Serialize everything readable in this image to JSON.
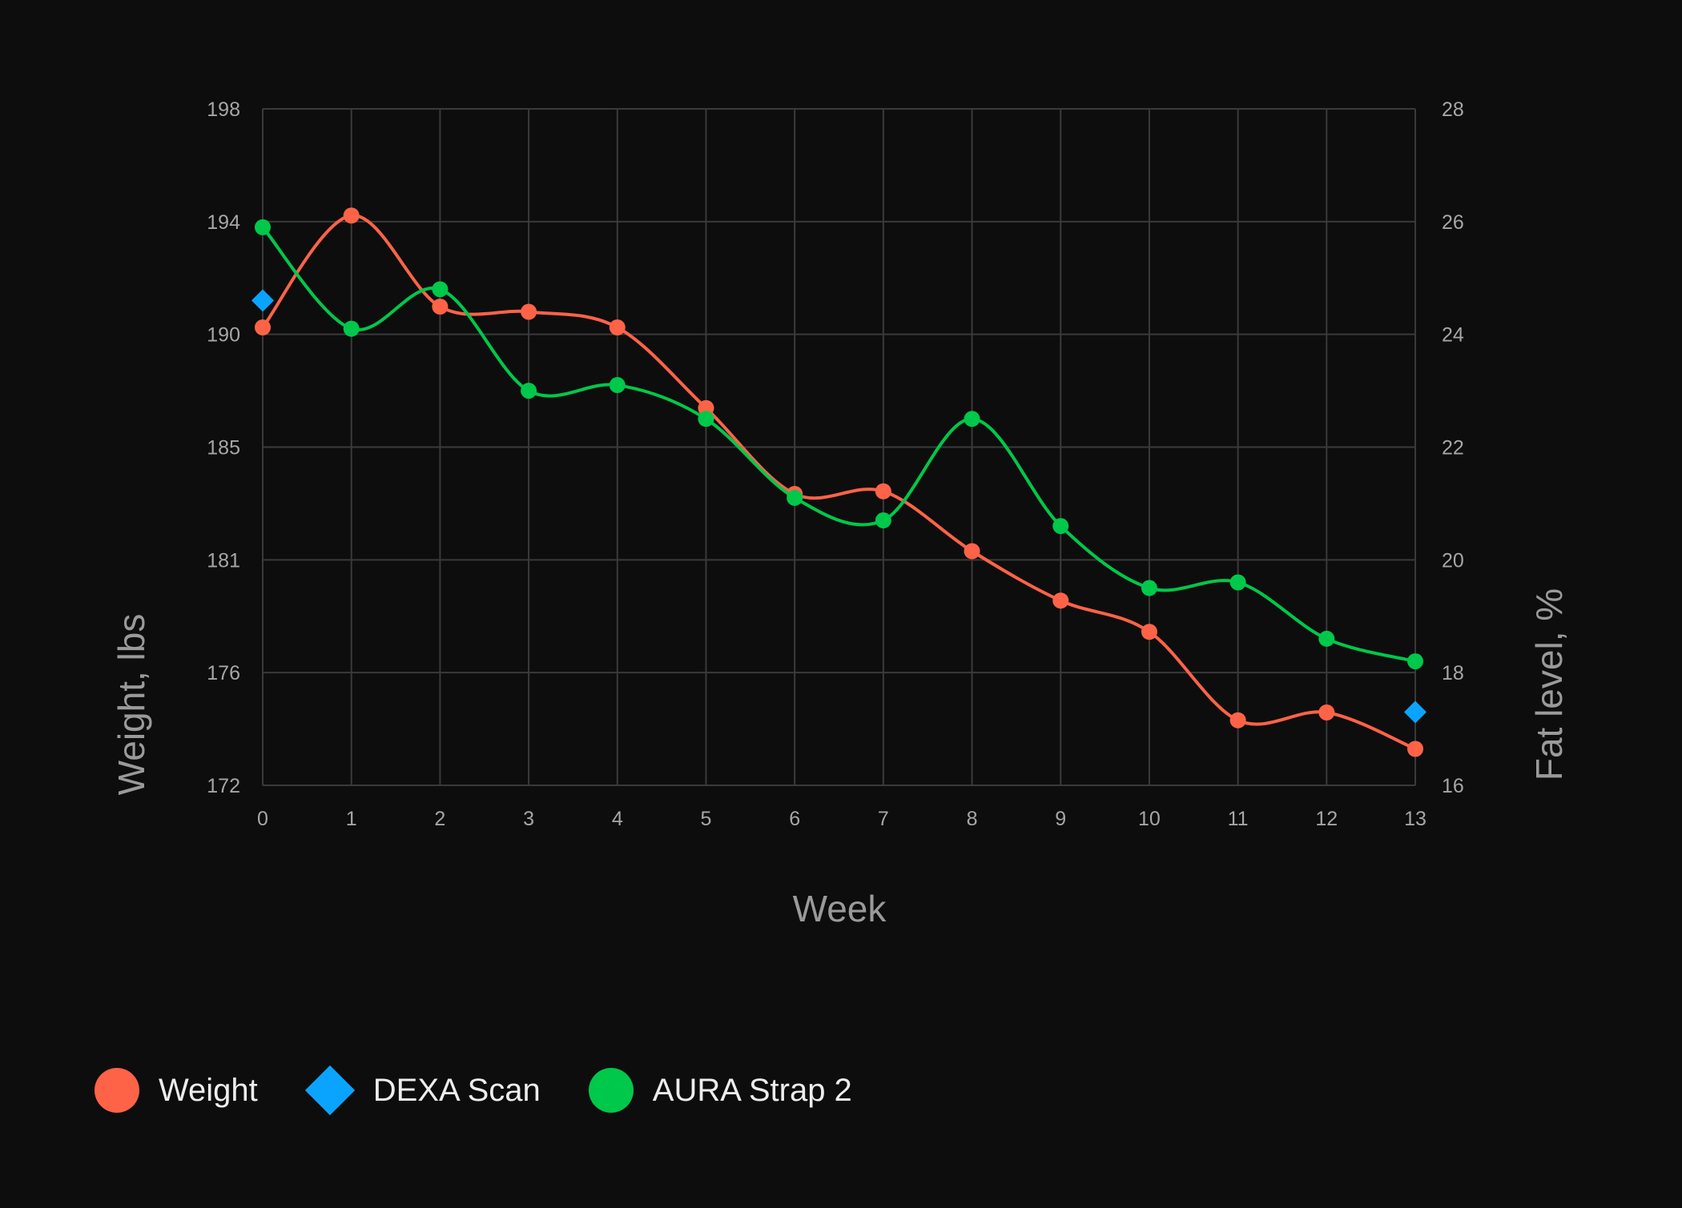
{
  "chart_data": {
    "type": "line",
    "xlabel": "Week",
    "ylabel_left": "Weight, lbs",
    "ylabel_right": "Fat level, %",
    "x": [
      0,
      1,
      2,
      3,
      4,
      5,
      6,
      7,
      8,
      9,
      10,
      11,
      12,
      13
    ],
    "x_ticks": [
      "0",
      "1",
      "2",
      "3",
      "4",
      "5",
      "6",
      "7",
      "8",
      "9",
      "10",
      "11",
      "12",
      "13"
    ],
    "y_left_ticks": [
      "198",
      "194",
      "190",
      "185",
      "181",
      "176",
      "172"
    ],
    "y_right_ticks": [
      "28",
      "26",
      "24",
      "22",
      "20",
      "18",
      "16"
    ],
    "y_left_range": [
      172,
      198
    ],
    "y_right_range": [
      16,
      28
    ],
    "grid": true,
    "legend_position": "bottom-left",
    "series": [
      {
        "name": "Weight",
        "axis": "left",
        "marker": "circle",
        "color": "#ff6347",
        "x": [
          0,
          1,
          2,
          3,
          4,
          5,
          6,
          7,
          8,
          9,
          10,
          11,
          12,
          13
        ],
        "values": [
          189.6,
          193.9,
          190.4,
          190.2,
          189.6,
          186.5,
          183.2,
          183.3,
          181.0,
          179.1,
          177.9,
          174.5,
          174.8,
          173.4
        ]
      },
      {
        "name": "DEXA Scan",
        "axis": "right",
        "marker": "diamond",
        "color": "#0aa4ff",
        "x": [
          0,
          13
        ],
        "values": [
          24.6,
          17.3
        ]
      },
      {
        "name": "AURA Strap 2",
        "axis": "right",
        "marker": "circle",
        "color": "#00c84a",
        "x": [
          0,
          1,
          2,
          3,
          4,
          5,
          6,
          7,
          8,
          9,
          10,
          11,
          12,
          13
        ],
        "values": [
          25.9,
          24.1,
          24.8,
          23.0,
          23.1,
          22.5,
          21.1,
          20.7,
          22.5,
          20.6,
          19.5,
          19.6,
          18.6,
          18.2
        ]
      }
    ]
  }
}
